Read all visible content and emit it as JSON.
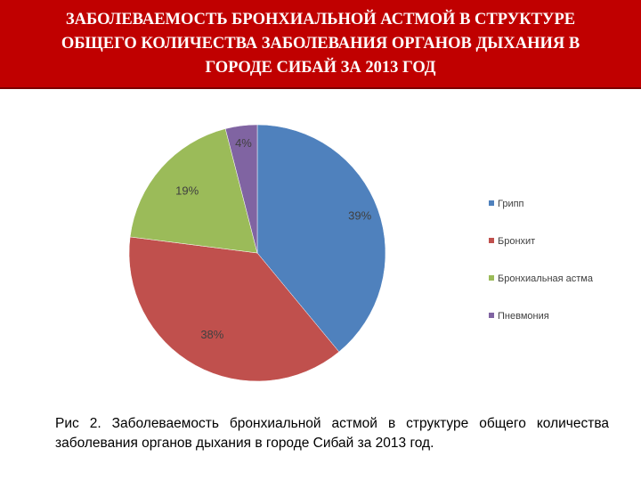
{
  "header": {
    "title": "ЗАБОЛЕВАЕМОСТЬ БРОНХИАЛЬНОЙ АСТМОЙ В СТРУКТУРЕ\nОБЩЕГО КОЛИЧЕСТВА ЗАБОЛЕВАНИЯ ОРГАНОВ ДЫХАНИЯ В\nГОРОДЕ СИБАЙ ЗА 2013 ГОД",
    "background_color": "#c00000"
  },
  "chart_data": {
    "type": "pie",
    "categories": [
      "Грипп",
      "Бронхит",
      "Бронхиальная астма",
      "Пневмония"
    ],
    "values": [
      39,
      38,
      19,
      4
    ],
    "labels": [
      "39%",
      "38%",
      "19%",
      "4%"
    ],
    "colors": [
      "#4f81bd",
      "#c0504d",
      "#9bbb59",
      "#8064a2"
    ],
    "start_angle_deg": 0,
    "direction": "clockwise",
    "legend_position": "right"
  },
  "caption": {
    "text": "Рис 2. Заболеваемость бронхиальной астмой в структуре общего количества заболевания органов дыхания в городе Сибай за 2013 год."
  }
}
